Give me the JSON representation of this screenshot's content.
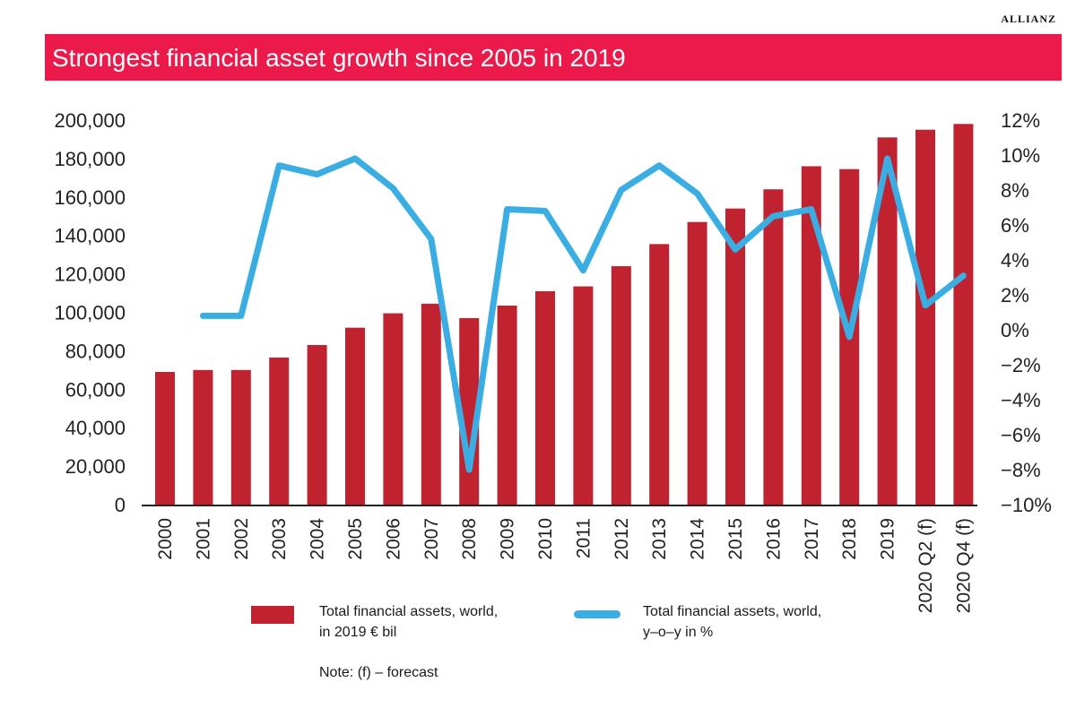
{
  "brand": "ALLIANZ",
  "colors": {
    "bars": "#c0222f",
    "line": "#3aaee3",
    "title_bg": "#ec1a4b",
    "axis": "#222222"
  },
  "chart_data": {
    "type": "bar+line",
    "title": "Strongest financial asset growth since 2005 in 2019",
    "categories": [
      "2000",
      "2001",
      "2002",
      "2003",
      "2004",
      "2005",
      "2006",
      "2007",
      "2008",
      "2009",
      "2010",
      "2011",
      "2012",
      "2013",
      "2014",
      "2015",
      "2016",
      "2017",
      "2018",
      "2019",
      "2020 Q2 (f)",
      "2020 Q4 (f)"
    ],
    "series": [
      {
        "name": "Total financial assets, world, in 2019 € bil",
        "axis": "left",
        "type": "bar",
        "values": [
          69000,
          70000,
          70000,
          76500,
          83000,
          92000,
          99500,
          104500,
          97000,
          103500,
          111000,
          113500,
          124000,
          135500,
          147000,
          154000,
          164000,
          176000,
          174500,
          191000,
          195000,
          198000
        ]
      },
      {
        "name": "Total financial assets, world, y-o-y in %",
        "axis": "right",
        "type": "line",
        "values": [
          null,
          0.8,
          0.8,
          9.4,
          8.9,
          9.8,
          8.1,
          5.2,
          -8.0,
          6.9,
          6.8,
          3.4,
          8.0,
          9.4,
          7.8,
          4.6,
          6.5,
          6.9,
          -0.4,
          9.8,
          1.4,
          3.1
        ]
      }
    ],
    "y_left": {
      "min": 0,
      "max": 200000,
      "ticks": [
        "0",
        "20,000",
        "40,000",
        "60,000",
        "80,000",
        "100,000",
        "120,000",
        "140,000",
        "160,000",
        "180,000",
        "200,000"
      ]
    },
    "y_right": {
      "min": -10,
      "max": 12,
      "ticks": [
        "−10%",
        "−8%",
        "−6%",
        "−4%",
        "−2%",
        "0%",
        "2%",
        "4%",
        "6%",
        "8%",
        "10%",
        "12%"
      ]
    },
    "legend": [
      {
        "line1": "Total financial assets, world,",
        "line2": "in 2019 € bil"
      },
      {
        "line1": "Total financial assets, world,",
        "line2": "y–o–y in %"
      }
    ],
    "note": "Note: (f) – forecast"
  }
}
